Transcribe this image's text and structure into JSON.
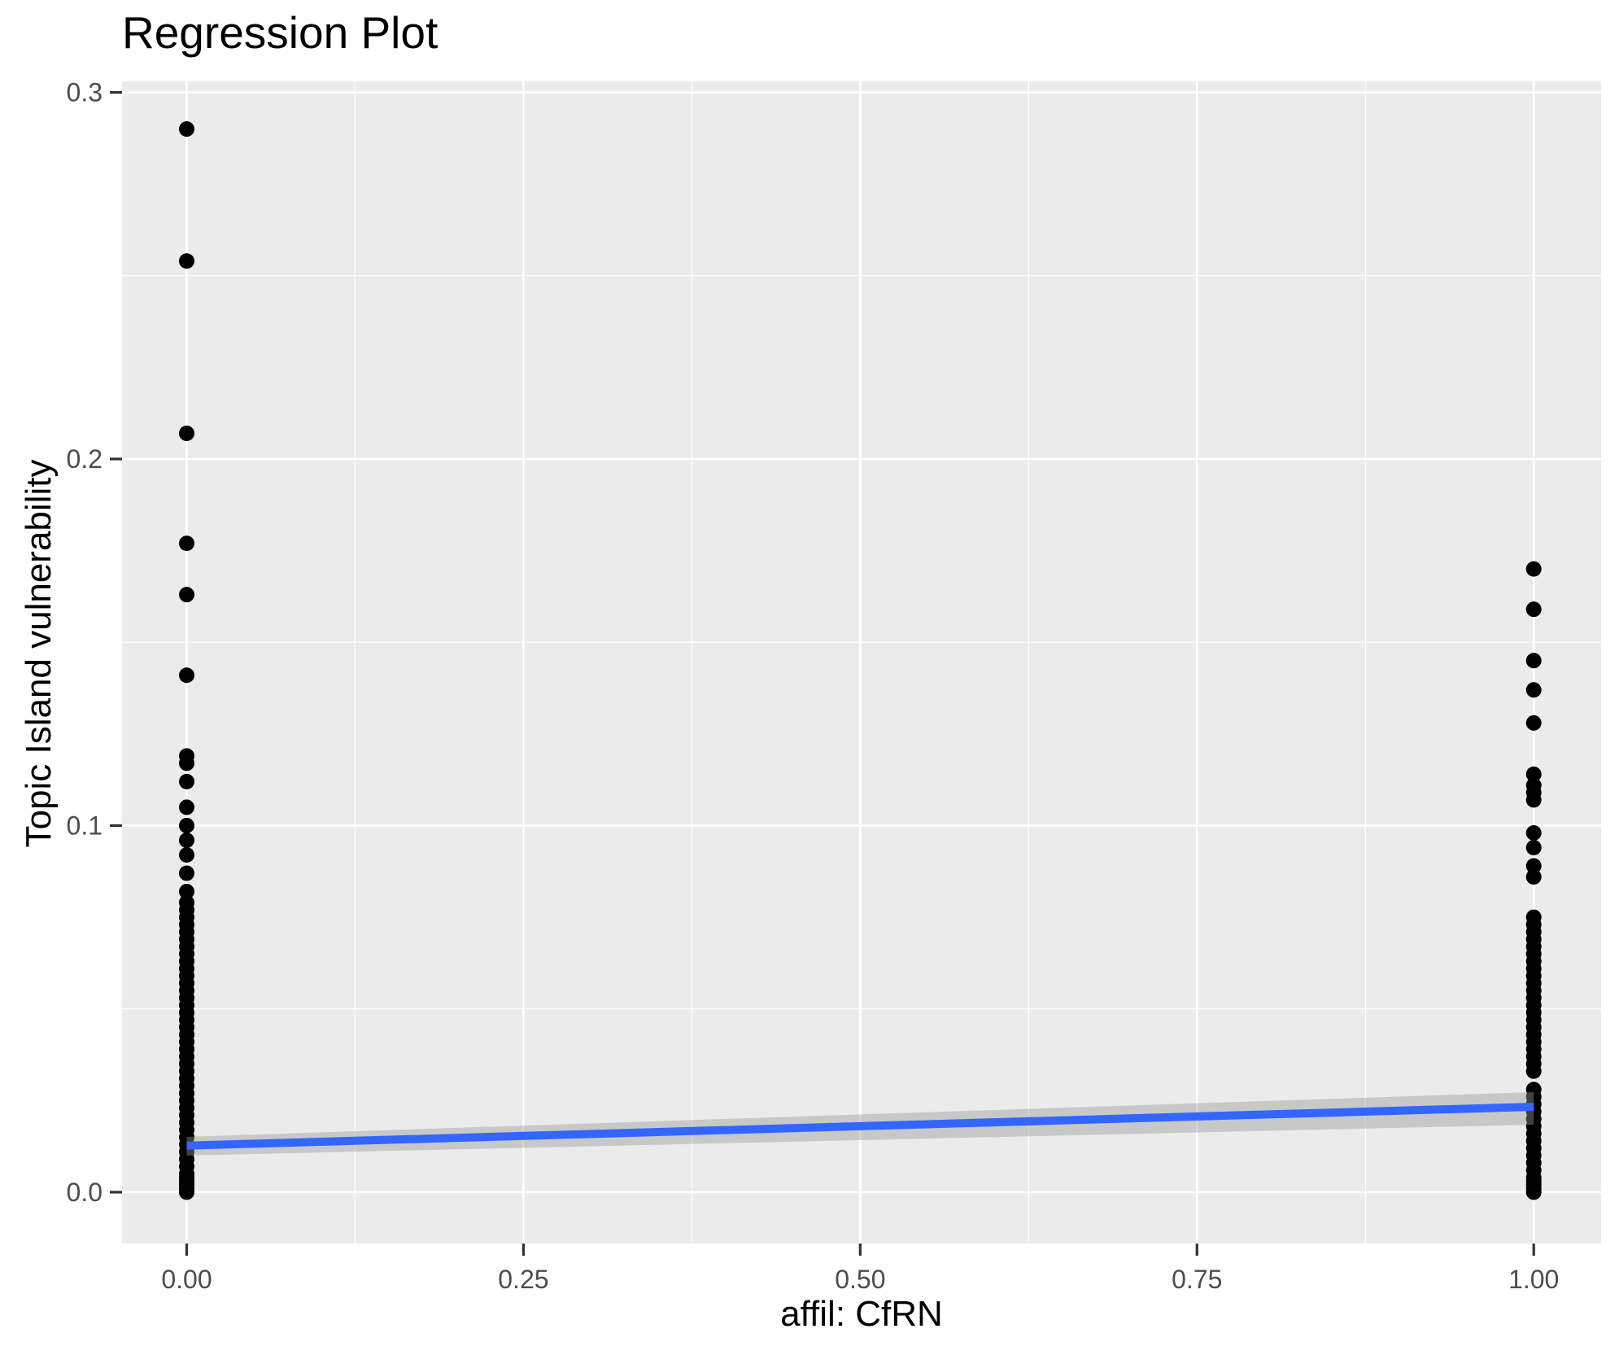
{
  "chart_data": {
    "type": "scatter",
    "title": "Regression Plot",
    "xlabel": "affil: CfRN",
    "ylabel": "Topic Island vulnerability",
    "legend_position": "none",
    "grid": true,
    "xlim": [
      -0.048,
      1.05
    ],
    "ylim": [
      -0.014,
      0.303
    ],
    "x_ticks": [
      {
        "value": 0.0,
        "label": "0.00"
      },
      {
        "value": 0.25,
        "label": "0.25"
      },
      {
        "value": 0.5,
        "label": "0.50"
      },
      {
        "value": 0.75,
        "label": "0.75"
      },
      {
        "value": 1.0,
        "label": "1.00"
      }
    ],
    "y_ticks": [
      {
        "value": 0.0,
        "label": "0.0"
      },
      {
        "value": 0.1,
        "label": "0.1"
      },
      {
        "value": 0.2,
        "label": "0.2"
      },
      {
        "value": 0.3,
        "label": "0.3"
      }
    ],
    "x_minor": [
      0.125,
      0.375,
      0.625,
      0.875
    ],
    "y_minor": [
      0.05,
      0.15,
      0.25
    ],
    "colors": {
      "panel_bg": "#EBEBEB",
      "grid": "#FFFFFF",
      "point": "#000000",
      "tick_mark": "#333333",
      "tick_label": "#4D4D4D",
      "regression_line": "#3366FF",
      "ci_band": "rgba(153,153,153,0.42)"
    },
    "series": [
      {
        "name": "affil: CfRN = 0",
        "x": 0,
        "values": [
          0.29,
          0.254,
          0.207,
          0.177,
          0.163,
          0.141,
          0.119,
          0.117,
          0.112,
          0.105,
          0.1,
          0.096,
          0.092,
          0.087,
          0.082,
          0.079,
          0.077,
          0.075,
          0.073,
          0.071,
          0.069,
          0.067,
          0.065,
          0.063,
          0.061,
          0.059,
          0.057,
          0.055,
          0.053,
          0.051,
          0.049,
          0.047,
          0.045,
          0.043,
          0.041,
          0.039,
          0.037,
          0.035,
          0.033,
          0.031,
          0.029,
          0.027,
          0.025,
          0.023,
          0.021,
          0.019,
          0.017,
          0.015,
          0.013,
          0.011,
          0.009,
          0.007,
          0.005,
          0.004,
          0.003,
          0.002,
          0.001,
          0.0
        ]
      },
      {
        "name": "affil: CfRN = 1",
        "x": 1,
        "values": [
          0.17,
          0.159,
          0.145,
          0.137,
          0.128,
          0.114,
          0.111,
          0.109,
          0.107,
          0.098,
          0.094,
          0.089,
          0.086,
          0.075,
          0.073,
          0.071,
          0.069,
          0.067,
          0.065,
          0.063,
          0.061,
          0.059,
          0.057,
          0.055,
          0.053,
          0.051,
          0.049,
          0.047,
          0.045,
          0.043,
          0.041,
          0.039,
          0.037,
          0.035,
          0.033,
          0.028,
          0.026,
          0.024,
          0.022,
          0.02,
          0.018,
          0.016,
          0.014,
          0.012,
          0.01,
          0.008,
          0.006,
          0.004,
          0.003,
          0.002,
          0.001,
          0.0
        ]
      }
    ],
    "regression": {
      "x": [
        0,
        1
      ],
      "y": [
        0.0127,
        0.0233
      ],
      "ci_lower": [
        0.01,
        0.0184
      ],
      "ci_upper": [
        0.0151,
        0.0273
      ]
    }
  }
}
